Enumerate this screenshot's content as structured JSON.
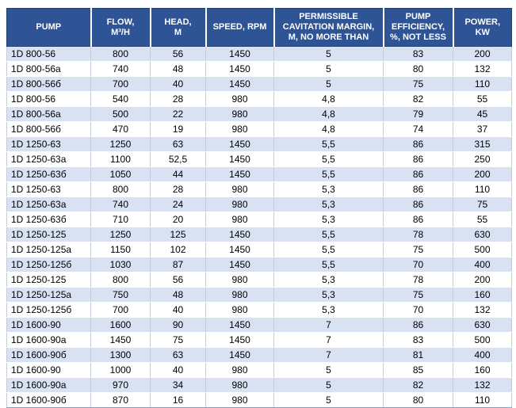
{
  "colors": {
    "header_bg": "#2F5496",
    "header_text": "#FFFFFF",
    "row_band_blue": "#D9E2F3",
    "row_band_white": "#FFFFFF",
    "grid_line": "#C3CBD9",
    "outer_border": "#8EA0BC"
  },
  "table": {
    "columns": [
      {
        "key": "pump",
        "label": "PUMP"
      },
      {
        "key": "flow",
        "label": "FLOW,\nM³/H"
      },
      {
        "key": "head",
        "label": "HEAD,\nM"
      },
      {
        "key": "speed",
        "label": "SPEED, RPM"
      },
      {
        "key": "cavitation",
        "label": "PERMISSIBLE\nCAVITATION MARGIN,\nM, NO MORE THAN"
      },
      {
        "key": "efficiency",
        "label": "PUMP\nEFFICIENCY,\n%, NOT LESS"
      },
      {
        "key": "power",
        "label": "POWER,\nKW"
      }
    ],
    "rows": [
      [
        "1D 800-56",
        "800",
        "56",
        "1450",
        "5",
        "83",
        "200"
      ],
      [
        "1D 800-56a",
        "740",
        "48",
        "1450",
        "5",
        "80",
        "132"
      ],
      [
        "1D 800-56б",
        "700",
        "40",
        "1450",
        "5",
        "75",
        "110"
      ],
      [
        "1D 800-56",
        "540",
        "28",
        "980",
        "4,8",
        "82",
        "55"
      ],
      [
        "1D 800-56a",
        "500",
        "22",
        "980",
        "4,8",
        "79",
        "45"
      ],
      [
        "1D 800-56б",
        "470",
        "19",
        "980",
        "4,8",
        "74",
        "37"
      ],
      [
        "1D 1250-63",
        "1250",
        "63",
        "1450",
        "5,5",
        "86",
        "315"
      ],
      [
        "1D 1250-63a",
        "1100",
        "52,5",
        "1450",
        "5,5",
        "86",
        "250"
      ],
      [
        "1D 1250-63б",
        "1050",
        "44",
        "1450",
        "5,5",
        "86",
        "200"
      ],
      [
        "1D 1250-63",
        "800",
        "28",
        "980",
        "5,3",
        "86",
        "110"
      ],
      [
        "1D 1250-63a",
        "740",
        "24",
        "980",
        "5,3",
        "86",
        "75"
      ],
      [
        "1D 1250-63б",
        "710",
        "20",
        "980",
        "5,3",
        "86",
        "55"
      ],
      [
        "1D 1250-125",
        "1250",
        "125",
        "1450",
        "5,5",
        "78",
        "630"
      ],
      [
        "1D 1250-125a",
        "1150",
        "102",
        "1450",
        "5,5",
        "75",
        "500"
      ],
      [
        "1D 1250-125б",
        "1030",
        "87",
        "1450",
        "5,5",
        "70",
        "400"
      ],
      [
        "1D 1250-125",
        "800",
        "56",
        "980",
        "5,3",
        "78",
        "200"
      ],
      [
        "1D 1250-125a",
        "750",
        "48",
        "980",
        "5,3",
        "75",
        "160"
      ],
      [
        "1D 1250-125б",
        "700",
        "40",
        "980",
        "5,3",
        "70",
        "132"
      ],
      [
        "1D 1600-90",
        "1600",
        "90",
        "1450",
        "7",
        "86",
        "630"
      ],
      [
        "1D 1600-90a",
        "1450",
        "75",
        "1450",
        "7",
        "83",
        "500"
      ],
      [
        "1D 1600-90б",
        "1300",
        "63",
        "1450",
        "7",
        "81",
        "400"
      ],
      [
        "1D 1600-90",
        "1000",
        "40",
        "980",
        "5",
        "85",
        "160"
      ],
      [
        "1D 1600-90a",
        "970",
        "34",
        "980",
        "5",
        "82",
        "132"
      ],
      [
        "1D 1600-90б",
        "870",
        "16",
        "980",
        "5",
        "80",
        "110"
      ]
    ]
  }
}
